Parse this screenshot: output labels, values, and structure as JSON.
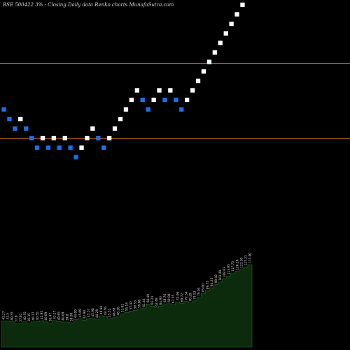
{
  "header": {
    "text": "BSE 500422  3% -  Closing Daily data  Renko  charts MunafaSutra.com"
  },
  "colors": {
    "background": "#000000",
    "up_brick": "#ffffff",
    "down_brick": "#1e6fe6",
    "reference_line": "#c0641c",
    "volume_fill": "#0c2a0c",
    "volume_outline": "#1f6b1f"
  },
  "chart_data": [
    {
      "type": "renko",
      "title": "BSE 500422 3% - Closing Daily data Renko charts MunafaSutra.com",
      "brick_size_note": "3%",
      "reference_lines": [
        114.5,
        83.0
      ],
      "ylim": [
        -6,
        141
      ],
      "bricks": [
        {
          "dir": "down",
          "level": 95
        },
        {
          "dir": "down",
          "level": 91
        },
        {
          "dir": "down",
          "level": 87
        },
        {
          "dir": "up",
          "level": 91
        },
        {
          "dir": "down",
          "level": 87
        },
        {
          "dir": "down",
          "level": 83
        },
        {
          "dir": "down",
          "level": 79
        },
        {
          "dir": "up",
          "level": 83
        },
        {
          "dir": "down",
          "level": 79
        },
        {
          "dir": "up",
          "level": 83
        },
        {
          "dir": "down",
          "level": 79
        },
        {
          "dir": "up",
          "level": 83
        },
        {
          "dir": "down",
          "level": 79
        },
        {
          "dir": "down",
          "level": 75
        },
        {
          "dir": "up",
          "level": 79
        },
        {
          "dir": "up",
          "level": 83
        },
        {
          "dir": "up",
          "level": 87
        },
        {
          "dir": "down",
          "level": 83
        },
        {
          "dir": "down",
          "level": 79
        },
        {
          "dir": "up",
          "level": 83
        },
        {
          "dir": "up",
          "level": 87
        },
        {
          "dir": "up",
          "level": 91
        },
        {
          "dir": "up",
          "level": 95
        },
        {
          "dir": "up",
          "level": 99
        },
        {
          "dir": "up",
          "level": 103
        },
        {
          "dir": "down",
          "level": 99
        },
        {
          "dir": "down",
          "level": 95
        },
        {
          "dir": "up",
          "level": 99
        },
        {
          "dir": "up",
          "level": 103
        },
        {
          "dir": "down",
          "level": 99
        },
        {
          "dir": "up",
          "level": 103
        },
        {
          "dir": "down",
          "level": 99
        },
        {
          "dir": "down",
          "level": 95
        },
        {
          "dir": "up",
          "level": 99
        },
        {
          "dir": "up",
          "level": 103
        },
        {
          "dir": "up",
          "level": 107
        },
        {
          "dir": "up",
          "level": 111
        },
        {
          "dir": "up",
          "level": 115
        },
        {
          "dir": "up",
          "level": 119
        },
        {
          "dir": "up",
          "level": 123
        },
        {
          "dir": "up",
          "level": 127
        },
        {
          "dir": "up",
          "level": 131
        },
        {
          "dir": "up",
          "level": 135
        },
        {
          "dir": "up",
          "level": 139
        }
      ]
    },
    {
      "type": "area",
      "series_label_values": [
        "41.27",
        "41.5",
        "40.35",
        "37.8",
        "37.81",
        "40.55",
        "38.35",
        "40.17",
        "40.55",
        "41.95",
        "40.09",
        "38.47",
        "42.27",
        "40.65",
        "40.09",
        "39.8",
        "38.88",
        "44.09",
        "45.09",
        "42.98",
        "45.57",
        "45.98",
        "44.29",
        "49.94",
        "48.56",
        "45.51",
        "46.88",
        "48.26",
        "53.02",
        "55.14",
        "57.42",
        "58.53",
        "59.90",
        "61.44",
        "68.49",
        "65.24",
        "62.49",
        "64.93",
        "68.76",
        "69.08",
        "67.55",
        "72.09",
        "69.72",
        "72.54",
        "70.29",
        "73.53",
        "79.05",
        "85.00",
        "89.75",
        "94.25",
        "99.48",
        "103.49",
        "108.63",
        "113.05",
        "117.73",
        "120.26",
        "123.30",
        "127.21",
        "131.00"
      ],
      "values": [
        41.27,
        41.5,
        40.35,
        37.8,
        37.81,
        40.55,
        38.35,
        40.17,
        40.55,
        41.95,
        40.09,
        38.47,
        42.27,
        40.65,
        40.09,
        39.8,
        38.88,
        44.09,
        45.09,
        42.98,
        45.57,
        45.98,
        44.29,
        49.94,
        48.56,
        45.51,
        46.88,
        48.26,
        53.02,
        55.14,
        57.42,
        58.53,
        59.9,
        61.44,
        68.49,
        65.24,
        62.49,
        64.93,
        68.76,
        69.08,
        67.55,
        72.09,
        69.72,
        72.54,
        70.29,
        73.53,
        79.05,
        85.0,
        89.75,
        94.25,
        99.48,
        103.49,
        108.63,
        113.05,
        117.73,
        120.26,
        123.3,
        127.21,
        131.0
      ]
    }
  ]
}
